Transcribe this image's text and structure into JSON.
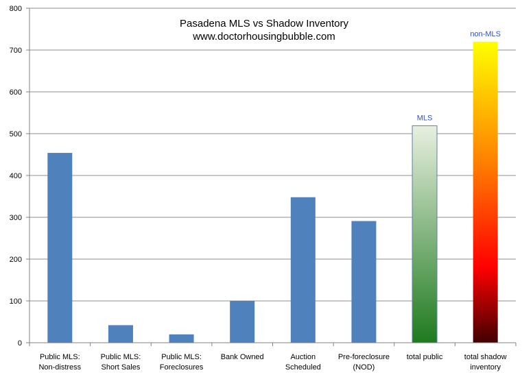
{
  "chart_data": {
    "type": "bar",
    "title": "Pasadena MLS vs Shadow Inventory",
    "subtitle": "www.doctorhousingbubble.com",
    "categories": [
      [
        "Public MLS:",
        "Non-distress"
      ],
      [
        "Public MLS:",
        "Short Sales"
      ],
      [
        "Public MLS:",
        "Foreclosures"
      ],
      [
        "Bank Owned"
      ],
      [
        "Auction",
        "Scheduled"
      ],
      [
        "Pre-foreclosure",
        "(NOD)"
      ],
      [
        "total public"
      ],
      [
        "total shadow",
        "inventory"
      ]
    ],
    "values": [
      454,
      42,
      20,
      100,
      348,
      291,
      519,
      720
    ],
    "ylim": [
      0,
      800
    ],
    "yticks": [
      0,
      100,
      200,
      300,
      400,
      500,
      600,
      700,
      800
    ],
    "grid": true,
    "legend": "none",
    "annotations": [
      {
        "text": "MLS",
        "category_index": 6,
        "color": "#3050d0"
      },
      {
        "text": "non-MLS",
        "category_index": 7,
        "color": "#3050d0"
      }
    ],
    "colors": {
      "bar": "#4f81bd",
      "grid": "#8c8c8c",
      "axis": "#808080",
      "mls_gradient_top": "#e8f0e0",
      "mls_gradient_bottom": "#1f7a1f",
      "shadow_gradient_top": "#ffff00",
      "shadow_gradient_mid": "#ff8000",
      "shadow_gradient_low": "#ff0000",
      "shadow_gradient_bottom": "#400000"
    }
  }
}
